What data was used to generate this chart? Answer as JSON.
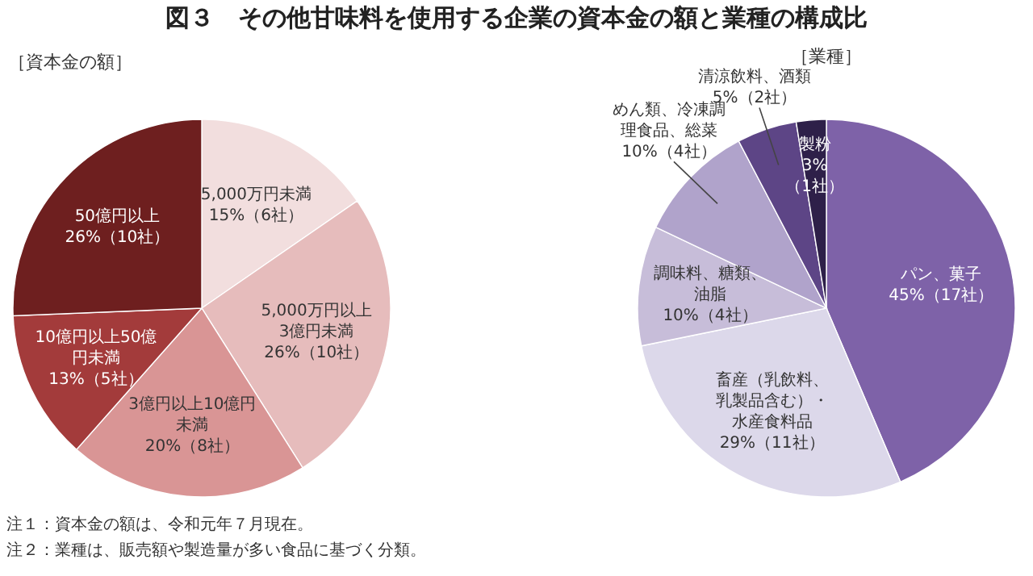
{
  "chart_data": [
    {
      "type": "pie",
      "title": "図３　その他甘味料を使用する企業の資本金の額と業種の構成比",
      "subtitle": "［資本金の額］",
      "categories": [
        "5,000万円未満",
        "5,000万円以上3億円未満",
        "3億円以上10億円未満",
        "10億円以上50億円未満",
        "50億円以上"
      ],
      "values": [
        6,
        10,
        8,
        5,
        10
      ],
      "value_labels": [
        "15%（6社）",
        "26%（10社）",
        "20%（8社）",
        "13%（5社）",
        "26%（10社）"
      ],
      "colors": [
        "#f2dede",
        "#e6bcbc",
        "#d99595",
        "#a33b3b",
        "#6e1f1f"
      ],
      "annotations": [
        "注１：資本金の額は、令和元年７月現在。",
        "注２：業種は、販売額や製造量が多い食品に基づく分類。"
      ]
    },
    {
      "type": "pie",
      "subtitle": "［業種］",
      "categories": [
        "パン、菓子",
        "畜産（乳飲料、乳製品含む）・水産食料品",
        "調味料、糖類、油脂",
        "めん類、冷凍調理食品、総菜",
        "清涼飲料、酒類",
        "製粉"
      ],
      "values": [
        17,
        11,
        4,
        4,
        2,
        1
      ],
      "value_labels": [
        "45%（17社）",
        "29%（11社）",
        "10%（4社）",
        "10%（4社）",
        "5%（2社）",
        "3%（1社）"
      ],
      "colors": [
        "#7e62a8",
        "#dcd8ea",
        "#c7bdd9",
        "#b0a3cb",
        "#5d4586",
        "#2e2049"
      ]
    }
  ]
}
